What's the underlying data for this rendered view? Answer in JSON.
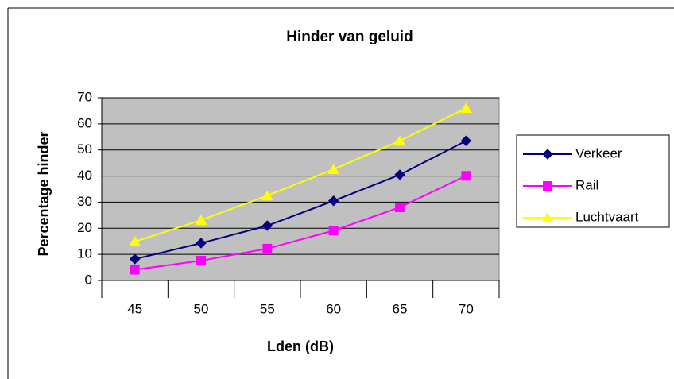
{
  "chart_data": {
    "type": "line",
    "title": "Hinder van geluid",
    "x_label": "Lden (dB)",
    "y_label": "Percentage hinder",
    "categories": [
      "45",
      "50",
      "55",
      "60",
      "65",
      "70"
    ],
    "series": [
      {
        "name": "Verkeer",
        "color": "#000080",
        "marker": "diamond",
        "values": [
          8.2,
          14.3,
          21,
          30.5,
          40.5,
          53.5
        ]
      },
      {
        "name": "Rail",
        "color": "#ff00ff",
        "marker": "square",
        "values": [
          4.1,
          7.6,
          12.2,
          19.1,
          28,
          40.1
        ]
      },
      {
        "name": "Luchtvaart",
        "color": "#ffff00",
        "marker": "triangle",
        "values": [
          14.9,
          23.1,
          32.5,
          42.6,
          53.5,
          66
        ]
      }
    ],
    "ylim": [
      0,
      70
    ],
    "yticks": [
      0,
      10,
      20,
      30,
      40,
      50,
      60,
      70
    ],
    "grid": true,
    "legend": "right"
  }
}
